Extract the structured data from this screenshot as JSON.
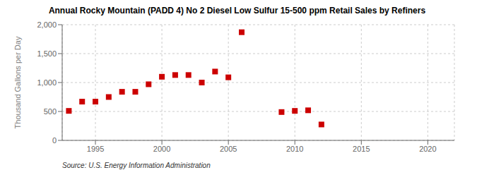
{
  "chart_data": {
    "type": "scatter",
    "title": "Annual Rocky Mountain (PADD 4) No 2 Diesel Low Sulfur 15-500 ppm Retail Sales by Refiners",
    "ylabel": "Thousand Gallons per Day",
    "annotation": "Source: U.S. Energy Information Administration",
    "x": [
      1993,
      1994,
      1995,
      1996,
      1997,
      1998,
      1999,
      2000,
      2001,
      2002,
      2003,
      2004,
      2005,
      2006,
      2009,
      2010,
      2011,
      2012
    ],
    "values": [
      510,
      670,
      670,
      750,
      840,
      840,
      970,
      1100,
      1130,
      1130,
      1000,
      1190,
      1090,
      1870,
      490,
      510,
      520,
      275
    ],
    "color": "#cc0000",
    "marker": "square",
    "xlim": [
      1992.5,
      2022
    ],
    "ylim": [
      0,
      2000
    ],
    "xticks": [
      1995,
      2000,
      2005,
      2010,
      2015,
      2020
    ],
    "yticks": [
      0,
      500,
      {
        "value": 1000,
        "label": "1,000"
      },
      {
        "value": 1500,
        "label": "1,500"
      },
      {
        "value": 2000,
        "label": "2,000"
      }
    ],
    "grid": true
  }
}
